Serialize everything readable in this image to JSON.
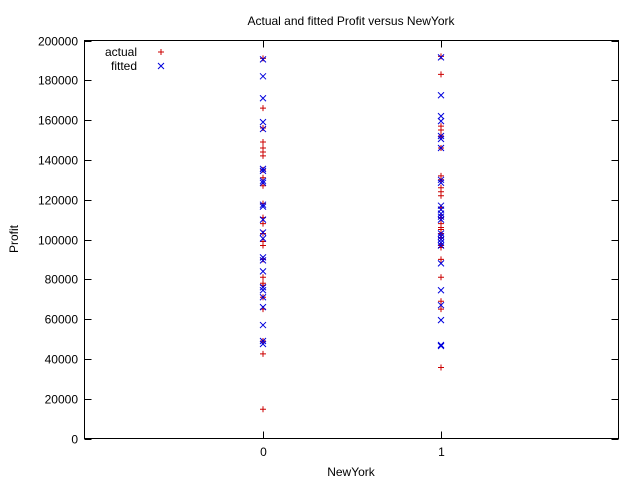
{
  "chart_data": {
    "type": "scatter",
    "title": "Actual and fitted Profit versus NewYork",
    "xlabel": "NewYork",
    "ylabel": "Profit",
    "xlim": [
      -1,
      2
    ],
    "ylim": [
      0,
      200000
    ],
    "x_ticks": [
      0,
      1
    ],
    "x_tick_labels": [
      "0",
      "1"
    ],
    "y_ticks": [
      0,
      20000,
      40000,
      60000,
      80000,
      100000,
      120000,
      140000,
      160000,
      180000,
      200000
    ],
    "y_tick_labels": [
      "0",
      "20000",
      "40000",
      "60000",
      "80000",
      "100000",
      "120000",
      "140000",
      "160000",
      "180000",
      "200000"
    ],
    "grid": false,
    "legend_position": "top-left",
    "series": [
      {
        "name": "actual",
        "marker": "plus",
        "color": "#cc0000",
        "points": [
          {
            "x": 0,
            "y": 191000
          },
          {
            "x": 0,
            "y": 166000
          },
          {
            "x": 0,
            "y": 156000
          },
          {
            "x": 0,
            "y": 149000
          },
          {
            "x": 0,
            "y": 146000
          },
          {
            "x": 0,
            "y": 144000
          },
          {
            "x": 0,
            "y": 142000
          },
          {
            "x": 0,
            "y": 135000
          },
          {
            "x": 0,
            "y": 131000
          },
          {
            "x": 0,
            "y": 127000
          },
          {
            "x": 0,
            "y": 118000
          },
          {
            "x": 0,
            "y": 111000
          },
          {
            "x": 0,
            "y": 108000
          },
          {
            "x": 0,
            "y": 103000
          },
          {
            "x": 0,
            "y": 99000
          },
          {
            "x": 0,
            "y": 97000
          },
          {
            "x": 0,
            "y": 90000
          },
          {
            "x": 0,
            "y": 81000
          },
          {
            "x": 0,
            "y": 78000
          },
          {
            "x": 0,
            "y": 77000
          },
          {
            "x": 0,
            "y": 71000
          },
          {
            "x": 0,
            "y": 65000
          },
          {
            "x": 0,
            "y": 49000
          },
          {
            "x": 0,
            "y": 42500
          },
          {
            "x": 0,
            "y": 14700
          },
          {
            "x": 1,
            "y": 192000
          },
          {
            "x": 1,
            "y": 183000
          },
          {
            "x": 1,
            "y": 157000
          },
          {
            "x": 1,
            "y": 155000
          },
          {
            "x": 1,
            "y": 152000
          },
          {
            "x": 1,
            "y": 146000
          },
          {
            "x": 1,
            "y": 132000
          },
          {
            "x": 1,
            "y": 130000
          },
          {
            "x": 1,
            "y": 126000
          },
          {
            "x": 1,
            "y": 124000
          },
          {
            "x": 1,
            "y": 122000
          },
          {
            "x": 1,
            "y": 116000
          },
          {
            "x": 1,
            "y": 111000
          },
          {
            "x": 1,
            "y": 108000
          },
          {
            "x": 1,
            "y": 106000
          },
          {
            "x": 1,
            "y": 105000
          },
          {
            "x": 1,
            "y": 103000
          },
          {
            "x": 1,
            "y": 101000
          },
          {
            "x": 1,
            "y": 97000
          },
          {
            "x": 1,
            "y": 96000
          },
          {
            "x": 1,
            "y": 90000
          },
          {
            "x": 1,
            "y": 81000
          },
          {
            "x": 1,
            "y": 69000
          },
          {
            "x": 1,
            "y": 65000
          },
          {
            "x": 1,
            "y": 35700
          }
        ]
      },
      {
        "name": "fitted",
        "marker": "cross",
        "color": "#0000dd",
        "points": [
          {
            "x": 0,
            "y": 190500
          },
          {
            "x": 0,
            "y": 182000
          },
          {
            "x": 0,
            "y": 171000
          },
          {
            "x": 0,
            "y": 159000
          },
          {
            "x": 0,
            "y": 155500
          },
          {
            "x": 0,
            "y": 135500
          },
          {
            "x": 0,
            "y": 134500
          },
          {
            "x": 0,
            "y": 129500
          },
          {
            "x": 0,
            "y": 128500
          },
          {
            "x": 0,
            "y": 117500
          },
          {
            "x": 0,
            "y": 116500
          },
          {
            "x": 0,
            "y": 110000
          },
          {
            "x": 0,
            "y": 103500
          },
          {
            "x": 0,
            "y": 100500
          },
          {
            "x": 0,
            "y": 91000
          },
          {
            "x": 0,
            "y": 89500
          },
          {
            "x": 0,
            "y": 84000
          },
          {
            "x": 0,
            "y": 76000
          },
          {
            "x": 0,
            "y": 74500
          },
          {
            "x": 0,
            "y": 71000
          },
          {
            "x": 0,
            "y": 66000
          },
          {
            "x": 0,
            "y": 57000
          },
          {
            "x": 0,
            "y": 49000
          },
          {
            "x": 0,
            "y": 47500
          },
          {
            "x": 1,
            "y": 191500
          },
          {
            "x": 1,
            "y": 172500
          },
          {
            "x": 1,
            "y": 162000
          },
          {
            "x": 1,
            "y": 159500
          },
          {
            "x": 1,
            "y": 152000
          },
          {
            "x": 1,
            "y": 150500
          },
          {
            "x": 1,
            "y": 146000
          },
          {
            "x": 1,
            "y": 130000
          },
          {
            "x": 1,
            "y": 128500
          },
          {
            "x": 1,
            "y": 117000
          },
          {
            "x": 1,
            "y": 115000
          },
          {
            "x": 1,
            "y": 113000
          },
          {
            "x": 1,
            "y": 111500
          },
          {
            "x": 1,
            "y": 110000
          },
          {
            "x": 1,
            "y": 103000
          },
          {
            "x": 1,
            "y": 101500
          },
          {
            "x": 1,
            "y": 100000
          },
          {
            "x": 1,
            "y": 98500
          },
          {
            "x": 1,
            "y": 97000
          },
          {
            "x": 1,
            "y": 88000
          },
          {
            "x": 1,
            "y": 74500
          },
          {
            "x": 1,
            "y": 67000
          },
          {
            "x": 1,
            "y": 59500
          },
          {
            "x": 1,
            "y": 47000
          },
          {
            "x": 1,
            "y": 46500
          }
        ]
      }
    ]
  }
}
